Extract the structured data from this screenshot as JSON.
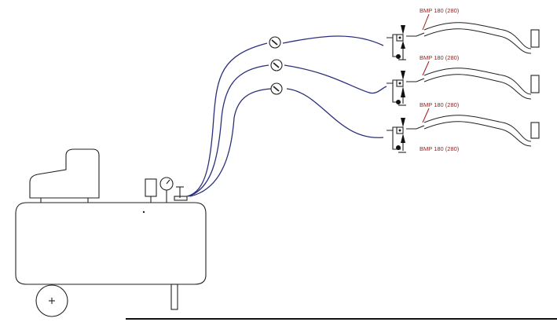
{
  "labels": {
    "gun1": "BMP 180 (280)",
    "gun2": "BMP 180 (280)",
    "gun3": "BMP 180 (280)",
    "gun4": "BMP 180 (280)"
  },
  "colors": {
    "line": "#222222",
    "hose": "#2a2f7a",
    "label": "#9b1c1c"
  }
}
